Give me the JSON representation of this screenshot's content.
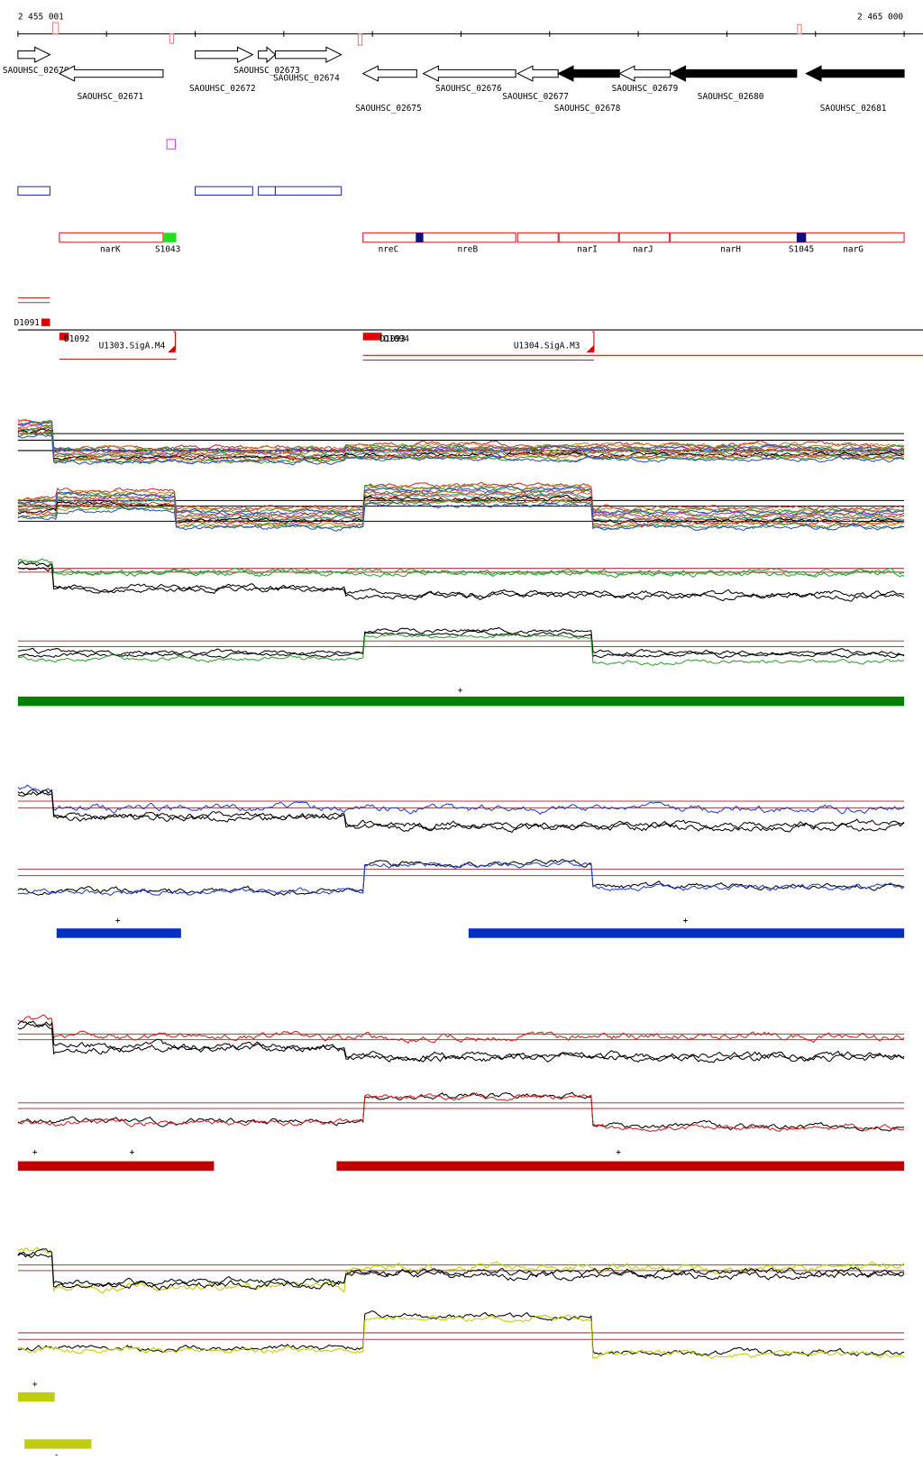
{
  "ruler": {
    "start": "2 455 001",
    "end": "2 465 000"
  },
  "genes": [
    "SAOUHSC_02670",
    "SAOUHSC_02671",
    "SAOUHSC_02672",
    "SAOUHSC_02673",
    "SAOUHSC_02674",
    "SAOUHSC_02675",
    "SAOUHSC_02676",
    "SAOUHSC_02677",
    "SAOUHSC_02678",
    "SAOUHSC_02679",
    "SAOUHSC_02680",
    "SAOUHSC_02681"
  ],
  "features": [
    "narK",
    "S1043",
    "nreC",
    "nreB",
    "narI",
    "narJ",
    "narH",
    "S1045",
    "narG"
  ],
  "segments": [
    "D1091",
    "D1092",
    "U1303.SigA.M4",
    "D1093",
    "D1094",
    "U1304.SigA.M3"
  ],
  "signs": [
    "+",
    "+",
    "+",
    "+",
    "+",
    "+",
    "+",
    "-"
  ]
}
